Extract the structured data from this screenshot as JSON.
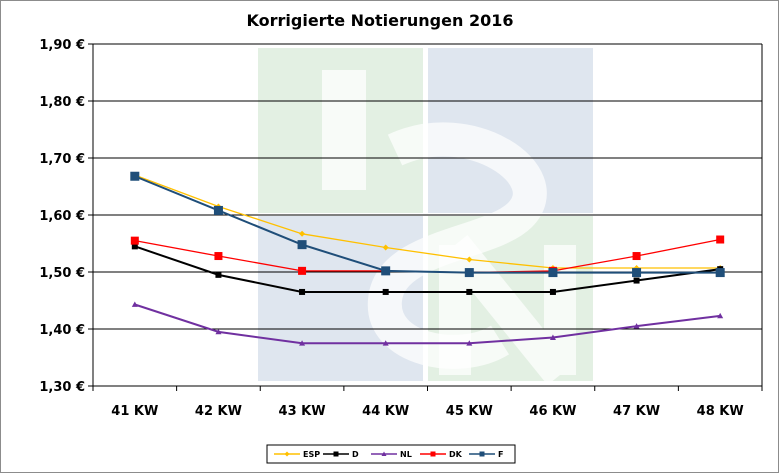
{
  "chart_data": {
    "type": "line",
    "title": "Korrigierte Notierungen 2016",
    "categories": [
      "41 KW",
      "42 KW",
      "43 KW",
      "44 KW",
      "45 KW",
      "46 KW",
      "47 KW",
      "48 KW"
    ],
    "ylim": [
      1.3,
      1.9
    ],
    "yticks": [
      "1,30 €",
      "1,40 €",
      "1,50 €",
      "1,60 €",
      "1,70 €",
      "1,80 €",
      "1,90 €"
    ],
    "grid": true,
    "legend_position": "bottom",
    "series": [
      {
        "name": "ESP",
        "color": "#ffc000",
        "marker": "diamond",
        "values": [
          1.67,
          1.615,
          1.567,
          1.543,
          1.522,
          1.507,
          1.507,
          1.507
        ]
      },
      {
        "name": "D",
        "color": "#000000",
        "marker": "square",
        "values": [
          1.545,
          1.495,
          1.465,
          1.465,
          1.465,
          1.465,
          1.485,
          1.505
        ]
      },
      {
        "name": "NL",
        "color": "#7030a0",
        "marker": "triangle",
        "values": [
          1.443,
          1.395,
          1.375,
          1.375,
          1.375,
          1.385,
          1.405,
          1.423
        ]
      },
      {
        "name": "DK",
        "color": "#ff0000",
        "marker": "square",
        "values": [
          1.555,
          1.528,
          1.502,
          1.502,
          1.499,
          1.502,
          1.528,
          1.557
        ]
      },
      {
        "name": "F",
        "color": "#1f4e79",
        "marker": "square",
        "values": [
          1.668,
          1.608,
          1.548,
          1.502,
          1.499,
          1.499,
          1.499,
          1.499
        ]
      }
    ]
  }
}
